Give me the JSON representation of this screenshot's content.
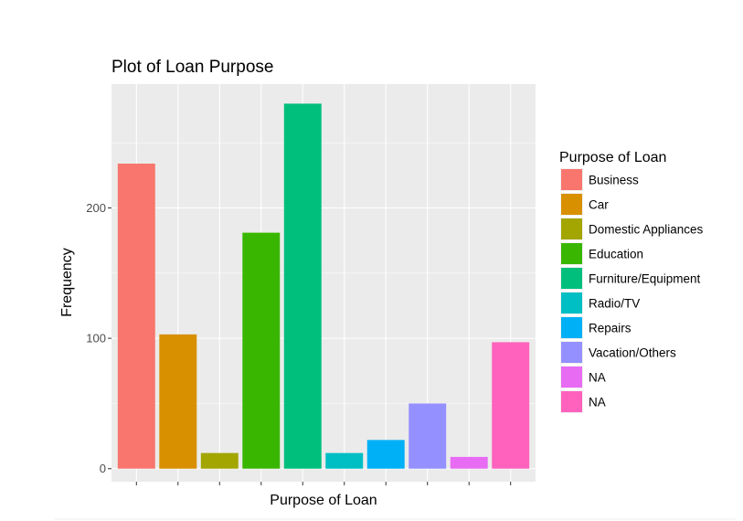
{
  "chart_data": {
    "type": "bar",
    "title": "Plot of Loan Purpose",
    "xlabel": "Purpose of Loan",
    "ylabel": "Frequency",
    "categories": [
      "Business",
      "Car",
      "Domestic Appliances",
      "Education",
      "Furniture/Equipment",
      "Radio/TV",
      "Repairs",
      "Vacation/Others",
      "NA",
      "NA"
    ],
    "values": [
      234,
      103,
      12,
      181,
      280,
      12,
      22,
      50,
      9,
      97
    ],
    "colors": [
      "#F8766D",
      "#D89000",
      "#A3A500",
      "#39B600",
      "#00BF7D",
      "#00BFC4",
      "#00B0F6",
      "#9590FF",
      "#E76BF3",
      "#FF62BC"
    ],
    "ylim": [
      -10,
      295
    ],
    "yticks": [
      0,
      100,
      200
    ],
    "ytick_labels": [
      "0",
      "100",
      "200"
    ],
    "grid": true,
    "legend": {
      "title": "Purpose of Loan",
      "position": "right",
      "entries": [
        "Business",
        "Car",
        "Domestic Appliances",
        "Education",
        "Furniture/Equipment",
        "Radio/TV",
        "Repairs",
        "Vacation/Others",
        "NA",
        "NA"
      ]
    }
  }
}
